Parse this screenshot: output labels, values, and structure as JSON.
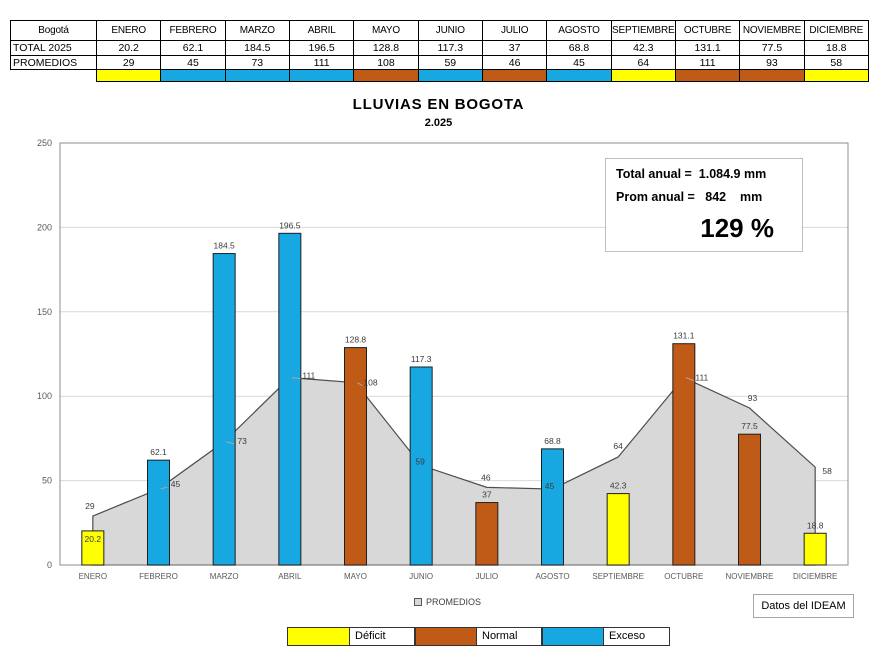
{
  "table": {
    "corner_label": "Bogotá",
    "months": [
      "ENERO",
      "FEBRERO",
      "MARZO",
      "ABRIL",
      "MAYO",
      "JUNIO",
      "JULIO",
      "AGOSTO",
      "SEPTIEMBRE",
      "OCTUBRE",
      "NOVIEMBRE",
      "DICIEMBRE"
    ],
    "row_labels": [
      "TOTAL 2025",
      "PROMEDIOS"
    ],
    "totals": [
      "20.2",
      "62.1",
      "184.5",
      "196.5",
      "128.8",
      "117.3",
      "37",
      "68.8",
      "42.3",
      "131.1",
      "77.5",
      "18.8"
    ],
    "promedios": [
      "29",
      "45",
      "73",
      "111",
      "108",
      "59",
      "46",
      "45",
      "64",
      "111",
      "93",
      "58"
    ],
    "status_by_month": [
      "deficit",
      "exceso",
      "exceso",
      "exceso",
      "normal",
      "exceso",
      "normal",
      "exceso",
      "deficit",
      "normal",
      "normal",
      "deficit"
    ]
  },
  "chart": {
    "title": "LLUVIAS EN BOGOTA",
    "subtitle": "2.025"
  },
  "chart_data": {
    "type": "combo-bar-area",
    "categories": [
      "ENERO",
      "FEBRERO",
      "MARZO",
      "ABRIL",
      "MAYO",
      "JUNIO",
      "JULIO",
      "AGOSTO",
      "SEPTIEMBRE",
      "OCTUBRE",
      "NOVIEMBRE",
      "DICIEMBRE"
    ],
    "series": [
      {
        "name": "TOTAL 2025",
        "type": "bar",
        "values": [
          20.2,
          62.1,
          184.5,
          196.5,
          128.8,
          117.3,
          37,
          68.8,
          42.3,
          131.1,
          77.5,
          18.8
        ],
        "value_labels": [
          "20.2",
          "62.1",
          "184.5",
          "196.5",
          "128.8",
          "117.3",
          "37",
          "68.8",
          "42.3",
          "131.1",
          "77.5",
          "18.8"
        ],
        "category_status": [
          "deficit",
          "exceso",
          "exceso",
          "exceso",
          "normal",
          "exceso",
          "normal",
          "exceso",
          "deficit",
          "normal",
          "normal",
          "deficit"
        ]
      },
      {
        "name": "PROMEDIOS",
        "type": "area",
        "values": [
          29,
          45,
          73,
          111,
          108,
          59,
          46,
          45,
          64,
          111,
          93,
          58
        ],
        "value_labels": [
          "29",
          "45",
          "73",
          "111",
          "108",
          "59",
          "46",
          "45",
          "64",
          "111",
          "93",
          "58"
        ]
      }
    ],
    "ylim": [
      0,
      250
    ],
    "yticks": [
      "0",
      "50",
      "100",
      "150",
      "200",
      "250"
    ],
    "grid": true,
    "legend_position": "bottom"
  },
  "annotation_box": {
    "line1_label": "Total anual =",
    "line1_value": "1.084.9 mm",
    "line2_label": "Prom anual =",
    "line2_value": "842",
    "line2_unit": "mm",
    "percent": "129 %"
  },
  "promedios_legend": {
    "label": "PROMEDIOS"
  },
  "category_legend": {
    "items": [
      {
        "label": "Déficit",
        "color_key": "deficit"
      },
      {
        "label": "Normal",
        "color_key": "normal"
      },
      {
        "label": "Exceso",
        "color_key": "exceso"
      }
    ]
  },
  "source": {
    "label": "Datos del IDEAM"
  },
  "colors": {
    "deficit": "#FFFF00",
    "normal": "#C05A17",
    "exceso": "#18A8E1",
    "area_fill": "#D8D8D8",
    "area_line": "#4D4D4D",
    "grid": "#D9D9D9",
    "axis_text": "#595959",
    "value_text": "#3B3B3B",
    "plot_border": "#8C8C8C",
    "bar_border": "#1F1F1F"
  }
}
